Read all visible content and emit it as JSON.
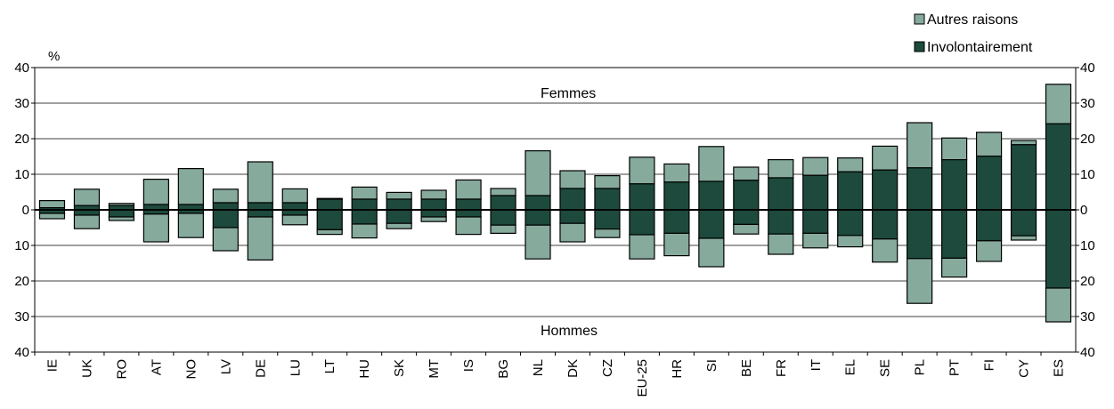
{
  "chart_data": {
    "type": "bar",
    "orientation": "vertical",
    "stacked": true,
    "unit_label": "%",
    "annotations": {
      "top": "Femmes",
      "bottom": "Hommes"
    },
    "y_ticks": [
      "40",
      "30",
      "20",
      "10",
      "0",
      "10",
      "20",
      "30",
      "40"
    ],
    "ylim": [
      -40,
      40
    ],
    "grid": true,
    "legend_position": "top-right",
    "categories": [
      "IE",
      "UK",
      "RO",
      "AT",
      "NO",
      "LV",
      "DE",
      "LU",
      "LT",
      "HU",
      "SK",
      "MT",
      "IS",
      "BG",
      "NL",
      "DK",
      "CZ",
      "EU-25",
      "HR",
      "SI",
      "BE",
      "FR",
      "IT",
      "EL",
      "SE",
      "PL",
      "PT",
      "FI",
      "CY",
      "ES"
    ],
    "series": [
      {
        "name": "Autres raisons",
        "color": "#86aa9c",
        "femmes_total": [
          2.6,
          5.8,
          1.8,
          8.6,
          11.6,
          5.8,
          13.5,
          5.9,
          3.2,
          6.4,
          4.9,
          5.5,
          8.4,
          6.0,
          16.6,
          11.0,
          9.6,
          14.8,
          12.9,
          17.8,
          12.0,
          14.1,
          14.7,
          14.6,
          17.9,
          24.5,
          20.2,
          21.8,
          19.5,
          35.3
        ],
        "hommes_total": [
          2.5,
          5.3,
          3.0,
          9.0,
          7.8,
          11.5,
          14.1,
          4.2,
          6.9,
          7.9,
          5.3,
          3.3,
          6.9,
          6.6,
          13.8,
          9.0,
          7.8,
          13.8,
          12.9,
          16.0,
          6.8,
          12.5,
          10.7,
          10.4,
          14.7,
          26.3,
          18.9,
          14.5,
          8.5,
          31.5
        ]
      },
      {
        "name": "Involontairement",
        "color": "#1d4a3c",
        "femmes": [
          0.6,
          1.2,
          1.2,
          1.5,
          1.5,
          2.0,
          2.0,
          2.0,
          3.0,
          3.0,
          3.0,
          3.0,
          3.0,
          4.0,
          4.0,
          6.0,
          6.0,
          7.3,
          7.8,
          8.0,
          8.3,
          9.0,
          9.7,
          10.7,
          11.2,
          11.8,
          14.1,
          15.1,
          18.3,
          24.2
        ],
        "hommes": [
          1.0,
          1.5,
          2.0,
          1.2,
          1.0,
          5.0,
          2.0,
          1.5,
          5.6,
          4.0,
          3.8,
          2.0,
          2.0,
          4.3,
          4.3,
          3.8,
          5.4,
          7.0,
          6.6,
          8.0,
          4.1,
          6.8,
          6.6,
          7.2,
          8.2,
          13.7,
          13.6,
          8.7,
          7.3,
          22.0
        ]
      }
    ]
  }
}
